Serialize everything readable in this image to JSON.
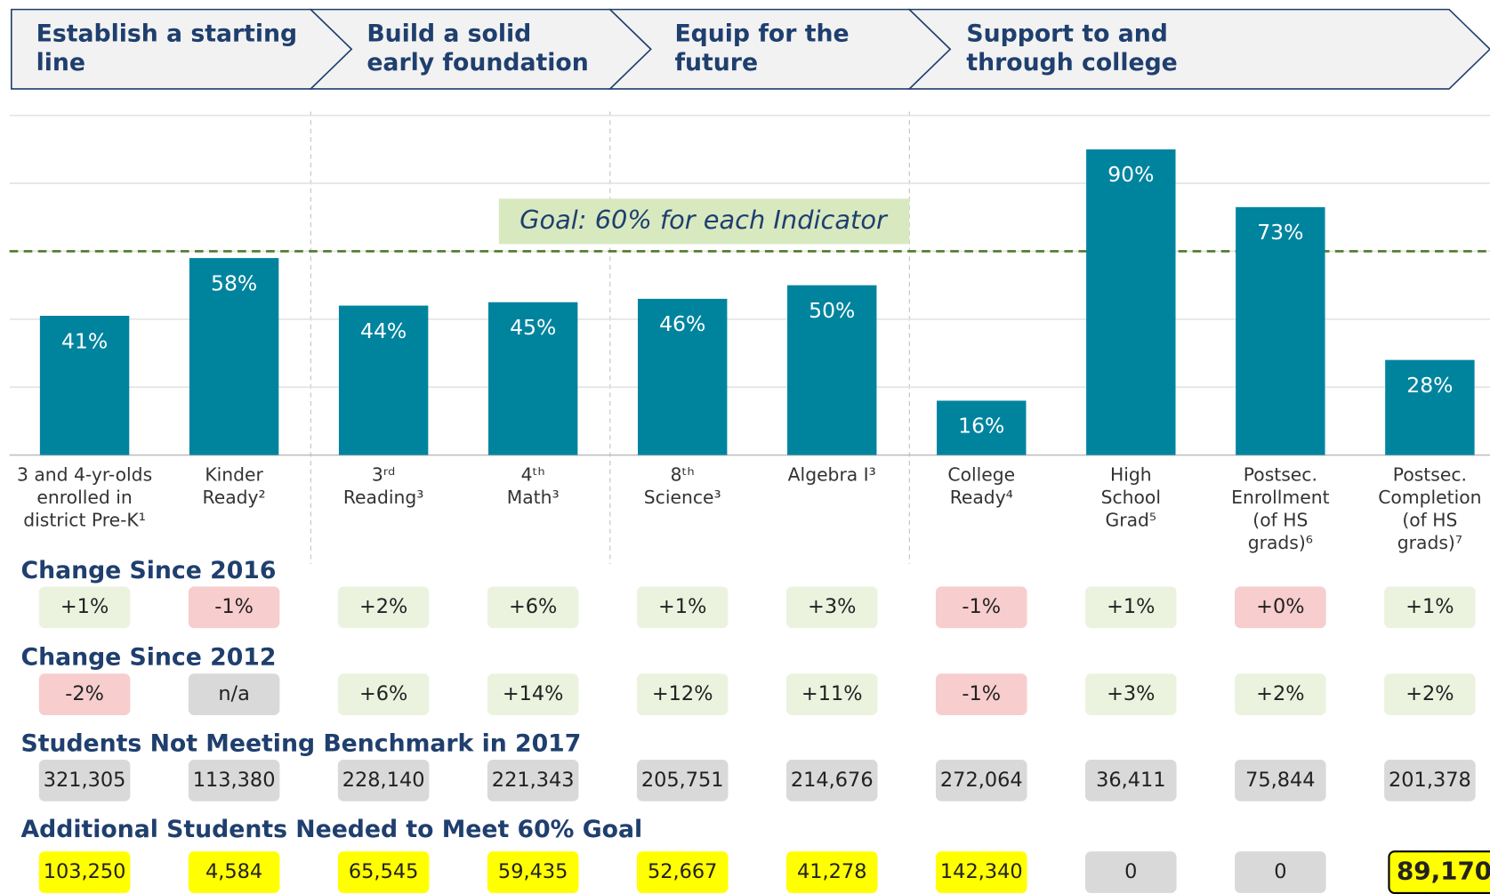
{
  "stages": [
    "Establish a starting line",
    "Build a solid early foundation",
    "Equip for the future",
    "Support to and through college"
  ],
  "chart_data": {
    "type": "bar",
    "categories": [
      [
        "3 and 4-yr-olds",
        "enrolled in",
        "district Pre-K¹"
      ],
      [
        "Kinder",
        "Ready²"
      ],
      [
        "3ʳᵈ",
        "Reading³"
      ],
      [
        "4ᵗʰ",
        "Math³"
      ],
      [
        "8ᵗʰ",
        "Science³"
      ],
      [
        "Algebra I³"
      ],
      [
        "College",
        "Ready⁴"
      ],
      [
        "High",
        "School",
        "Grad⁵"
      ],
      [
        "Postsec.",
        "Enrollment",
        "(of HS",
        "grads)⁶"
      ],
      [
        "Postsec.",
        "Completion",
        "(of HS",
        "grads)⁷"
      ]
    ],
    "values": [
      41,
      58,
      44,
      45,
      46,
      50,
      16,
      90,
      73,
      28
    ],
    "value_labels": [
      "41%",
      "58%",
      "44%",
      "45%",
      "46%",
      "50%",
      "16%",
      "90%",
      "73%",
      "28%"
    ],
    "color": "#00849e",
    "ylim": [
      0,
      100
    ],
    "yticks": [
      0,
      20,
      40,
      60,
      80,
      100
    ],
    "grid": true,
    "goal": {
      "value": 60,
      "label": "Goal: 60% for each Indicator",
      "color": "#4f7a28",
      "label_fill": "#d8e9c0"
    }
  },
  "rows": [
    {
      "title": "Change Since 2016",
      "cells": [
        "+1%",
        "-1%",
        "+2%",
        "+6%",
        "+1%",
        "+3%",
        "-1%",
        "+1%",
        "+0%",
        "+1%"
      ],
      "fills": [
        "#ebf3df",
        "#f7cdcd",
        "#ebf3df",
        "#ebf3df",
        "#ebf3df",
        "#ebf3df",
        "#f7cdcd",
        "#ebf3df",
        "#f7cdcd",
        "#ebf3df"
      ]
    },
    {
      "title": "Change Since 2012",
      "cells": [
        "-2%",
        "n/a",
        "+6%",
        "+14%",
        "+12%",
        "+11%",
        "-1%",
        "+3%",
        "+2%",
        "+2%"
      ],
      "fills": [
        "#f7cdcd",
        "#d9d9d9",
        "#ebf3df",
        "#ebf3df",
        "#ebf3df",
        "#ebf3df",
        "#f7cdcd",
        "#ebf3df",
        "#ebf3df",
        "#ebf3df"
      ]
    },
    {
      "title": "Students Not Meeting Benchmark in 2017",
      "cells": [
        "321,305",
        "113,380",
        "228,140",
        "221,343",
        "205,751",
        "214,676",
        "272,064",
        "36,411",
        "75,844",
        "201,378"
      ],
      "fills": [
        "#d9d9d9",
        "#d9d9d9",
        "#d9d9d9",
        "#d9d9d9",
        "#d9d9d9",
        "#d9d9d9",
        "#d9d9d9",
        "#d9d9d9",
        "#d9d9d9",
        "#d9d9d9"
      ]
    },
    {
      "title": "Additional Students Needed to Meet 60% Goal",
      "cells": [
        "103,250",
        "4,584",
        "65,545",
        "59,435",
        "52,667",
        "41,278",
        "142,340",
        "0",
        "0",
        "89,170"
      ],
      "fills": [
        "#ffff00",
        "#ffff00",
        "#ffff00",
        "#ffff00",
        "#ffff00",
        "#ffff00",
        "#ffff00",
        "#d9d9d9",
        "#d9d9d9",
        "#ffff00"
      ]
    }
  ]
}
